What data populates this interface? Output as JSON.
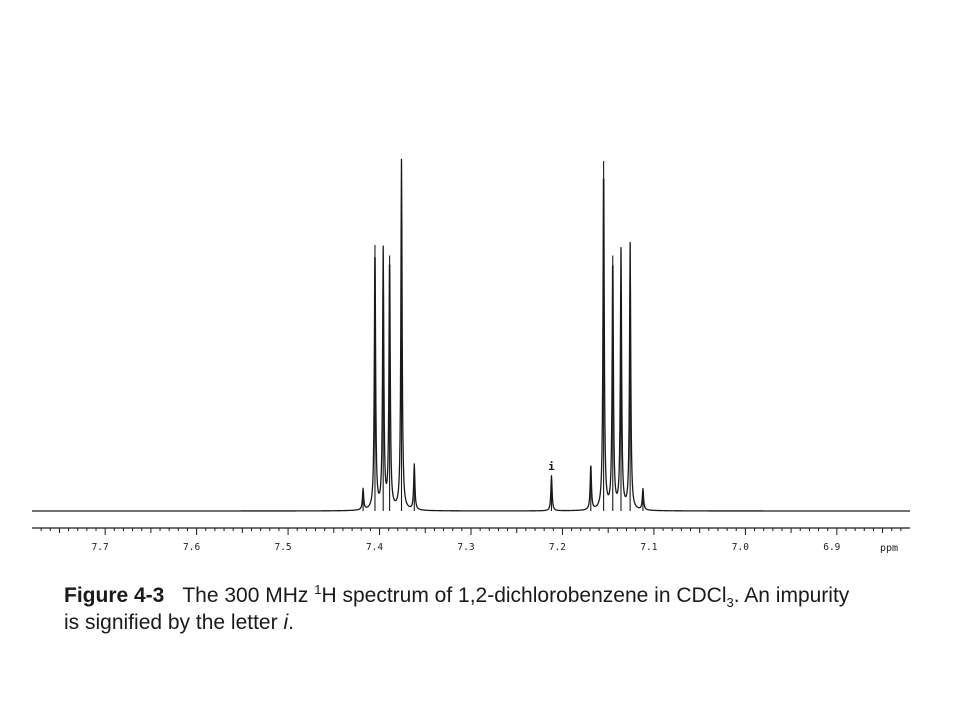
{
  "chart_data": {
    "type": "line",
    "title": "",
    "xlabel": "ppm",
    "ylabel": "",
    "xlim": [
      7.78,
      6.82
    ],
    "x_reversed": true,
    "ylim": [
      0,
      1.0
    ],
    "grid": false,
    "ticks": [
      "7.7",
      "7.6",
      "7.5",
      "7.4",
      "7.3",
      "7.2",
      "7.1",
      "7.0",
      "6.9"
    ],
    "tick_values": [
      7.7,
      7.6,
      7.5,
      7.4,
      7.3,
      7.2,
      7.1,
      7.0,
      6.9
    ],
    "series": [
      {
        "peaks": [
          {
            "x": 7.418,
            "y": 0.06
          },
          {
            "x": 7.405,
            "y": 0.76
          },
          {
            "x": 7.396,
            "y": 0.74
          },
          {
            "x": 7.389,
            "y": 0.73
          },
          {
            "x": 7.376,
            "y": 1.0
          },
          {
            "x": 7.362,
            "y": 0.13
          },
          {
            "x": 7.212,
            "y": 0.1
          },
          {
            "x": 7.169,
            "y": 0.13
          },
          {
            "x": 7.155,
            "y": 1.0
          },
          {
            "x": 7.145,
            "y": 0.73
          },
          {
            "x": 7.136,
            "y": 0.74
          },
          {
            "x": 7.126,
            "y": 0.76
          },
          {
            "x": 7.112,
            "y": 0.06
          }
        ]
      }
    ],
    "annotations": [
      {
        "text": "i",
        "x": 7.212
      }
    ]
  },
  "caption": {
    "figure_number": "Figure 4-3",
    "text_part1": "The 300 MHz ",
    "sup": "1",
    "text_part2": "H spectrum of 1,2-dichlorobenzene in CDCl",
    "sub": "3",
    "text_part3": ". An impurity is signified by the letter ",
    "italic_letter": "i",
    "text_end": "."
  }
}
